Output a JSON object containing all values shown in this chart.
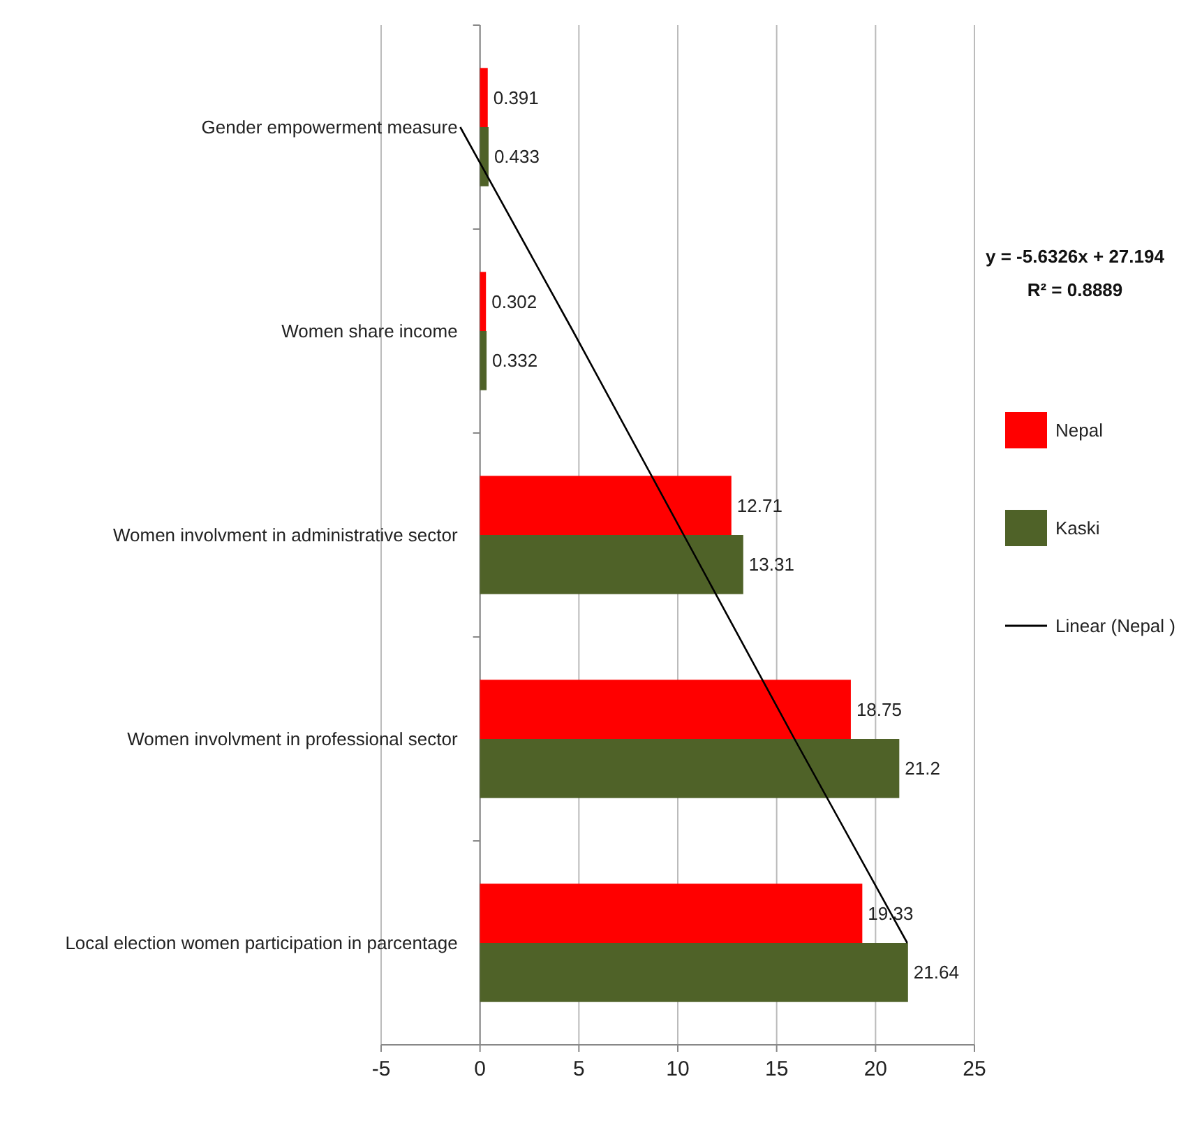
{
  "chart_data": {
    "type": "bar",
    "orientation": "horizontal",
    "categories": [
      "Gender empowerment measure",
      "Women share income",
      "Women involvment in administrative sector",
      "Women involvment in professional sector",
      "Local election women participation in parcentage"
    ],
    "series": [
      {
        "name": "Nepal",
        "color": "#ff0000",
        "values": [
          0.391,
          0.302,
          12.71,
          18.75,
          19.33
        ]
      },
      {
        "name": "Kaski",
        "color": "#4f6228",
        "values": [
          0.433,
          0.332,
          13.31,
          21.2,
          21.64
        ]
      },
      {
        "name": "Linear (Nepal )",
        "type": "line",
        "color": "#000000",
        "values": [
          -1.0,
          4.7,
          10.3,
          15.9,
          21.6
        ],
        "value_labels": [
          null,
          null,
          null,
          null,
          null
        ]
      }
    ],
    "xlim": [
      -5,
      25
    ],
    "xticks": [
      -5,
      0,
      5,
      10,
      15,
      20,
      25
    ],
    "grid": "x",
    "legend": "right",
    "data_labels": true,
    "annotations": [
      "y = -5.6326x + 27.194",
      "R² = 0.8889"
    ]
  }
}
